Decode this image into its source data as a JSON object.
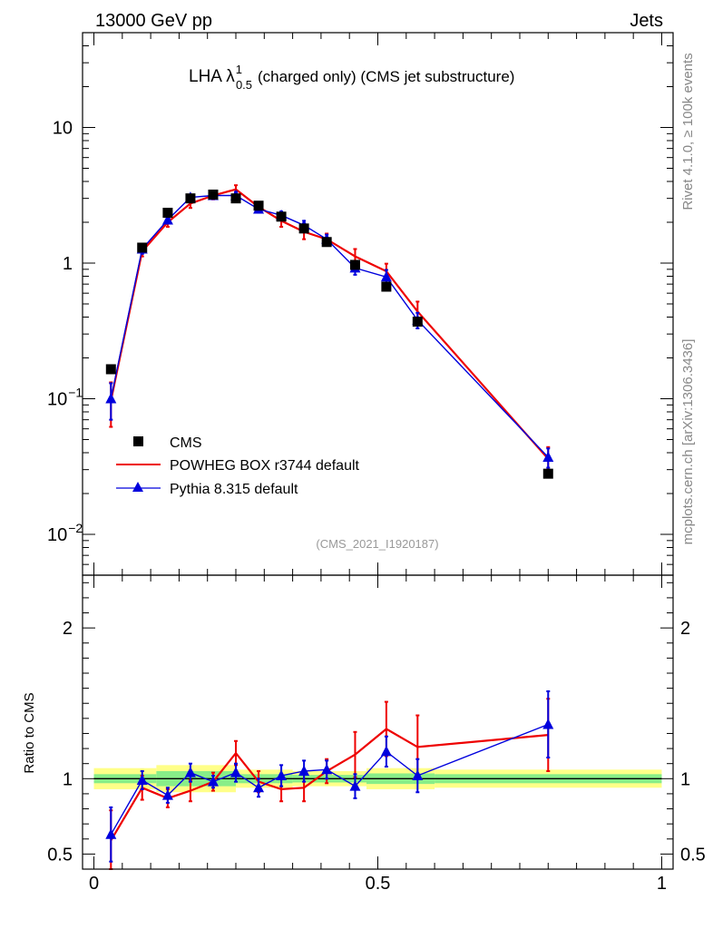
{
  "header": {
    "energy_label": "13000 GeV pp",
    "process_label": "Jets"
  },
  "side": {
    "rivet_label": "Rivet 4.1.0, ≥ 100k events",
    "source_label": "mcplots.cern.ch [arXiv:1306.3436]"
  },
  "chart_data": [
    {
      "type": "line",
      "title": "LHA λ",
      "title_superscript": "1",
      "title_subscript": "0.5",
      "title_suffix": "(charged only) (CMS jet substructure)",
      "analysis_label": "(CMS_2021_I1920187)",
      "yscale": "log",
      "ylim": [
        0.005,
        50
      ],
      "xlim": [
        -0.02,
        1.02
      ],
      "yticks": [
        {
          "value": 10,
          "label": "10"
        },
        {
          "value": 1,
          "label": "1"
        },
        {
          "value": 0.1,
          "label": "10",
          "exp": "−1"
        },
        {
          "value": 0.01,
          "label": "10",
          "exp": "−2"
        }
      ],
      "legend": [
        {
          "name": "CMS",
          "color": "#000000",
          "marker": "square"
        },
        {
          "name": "POWHEG BOX r3744 default",
          "color": "#ee0000",
          "marker": "line"
        },
        {
          "name": "Pythia 8.315 default",
          "color": "#0000dd",
          "marker": "triangle"
        }
      ],
      "x": [
        0.03,
        0.085,
        0.13,
        0.17,
        0.21,
        0.25,
        0.29,
        0.33,
        0.37,
        0.41,
        0.46,
        0.515,
        0.57,
        0.8
      ],
      "series": [
        {
          "name": "CMS",
          "color": "#000000",
          "values": [
            0.165,
            1.3,
            2.35,
            3.0,
            3.2,
            3.0,
            2.65,
            2.2,
            1.8,
            1.43,
            0.97,
            0.67,
            0.37,
            0.028
          ]
        },
        {
          "name": "POWHEG BOX r3744 default",
          "color": "#ee0000",
          "values": [
            0.097,
            1.22,
            2.0,
            2.75,
            3.15,
            3.5,
            2.6,
            2.05,
            1.7,
            1.5,
            1.12,
            0.87,
            0.44,
            0.036
          ],
          "err": [
            0.035,
            0.1,
            0.15,
            0.2,
            0.2,
            0.25,
            0.2,
            0.2,
            0.2,
            0.15,
            0.15,
            0.12,
            0.08,
            0.008
          ]
        },
        {
          "name": "Pythia 8.315 default",
          "color": "#0000dd",
          "values": [
            0.1,
            1.27,
            2.08,
            3.05,
            3.15,
            3.15,
            2.5,
            2.25,
            1.9,
            1.5,
            0.92,
            0.79,
            0.38,
            0.037
          ],
          "err": [
            0.03,
            0.1,
            0.12,
            0.15,
            0.15,
            0.2,
            0.15,
            0.15,
            0.15,
            0.12,
            0.1,
            0.1,
            0.05,
            0.006
          ]
        }
      ]
    },
    {
      "type": "line",
      "ylabel": "Ratio to CMS",
      "xlabel": "",
      "ylim": [
        0.4,
        2.35
      ],
      "xlim": [
        -0.02,
        1.02
      ],
      "yticks": [
        {
          "value": 2,
          "label": "2"
        },
        {
          "value": 1,
          "label": "1"
        },
        {
          "value": 0.5,
          "label": "0.5"
        }
      ],
      "xticks": [
        {
          "value": 0,
          "label": "0"
        },
        {
          "value": 0.5,
          "label": "0.5"
        },
        {
          "value": 1,
          "label": "1"
        }
      ],
      "reference_line": 1,
      "band_edges": [
        0.0,
        0.11,
        0.25,
        0.35,
        0.48,
        0.6,
        1.0
      ],
      "band_inner_halfwidth": [
        0.03,
        0.05,
        0.03,
        0.025,
        0.035,
        0.03
      ],
      "band_outer_halfwidth": [
        0.07,
        0.09,
        0.06,
        0.05,
        0.07,
        0.06
      ],
      "x": [
        0.03,
        0.085,
        0.13,
        0.17,
        0.21,
        0.25,
        0.29,
        0.33,
        0.37,
        0.41,
        0.46,
        0.515,
        0.57,
        0.8
      ],
      "series": [
        {
          "name": "POWHEG BOX r3744 default",
          "color": "#ee0000",
          "values": [
            0.59,
            0.94,
            0.87,
            0.92,
            0.98,
            1.17,
            0.98,
            0.93,
            0.94,
            1.05,
            1.16,
            1.33,
            1.21,
            1.29
          ],
          "err": [
            0.2,
            0.08,
            0.06,
            0.07,
            0.06,
            0.08,
            0.07,
            0.08,
            0.09,
            0.08,
            0.15,
            0.18,
            0.21,
            0.24
          ]
        },
        {
          "name": "Pythia 8.315 default",
          "color": "#0000dd",
          "values": [
            0.63,
            0.99,
            0.89,
            1.04,
            0.98,
            1.04,
            0.94,
            1.02,
            1.05,
            1.06,
            0.95,
            1.18,
            1.02,
            1.36
          ],
          "err": [
            0.18,
            0.06,
            0.05,
            0.06,
            0.04,
            0.06,
            0.06,
            0.07,
            0.07,
            0.06,
            0.08,
            0.1,
            0.11,
            0.22
          ]
        }
      ]
    }
  ]
}
